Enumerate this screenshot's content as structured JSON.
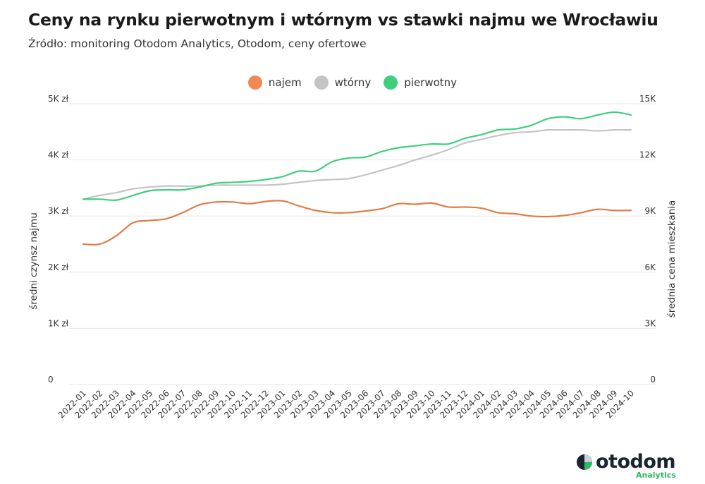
{
  "title": "Ceny na rynku pierwotnym i wtórnym vs stawki najmu we Wrocławiu",
  "subtitle": "Źródło: monitoring Otodom Analytics, Otodom, ceny ofertowe",
  "legend": [
    {
      "label": "najem",
      "color": "#f08a55"
    },
    {
      "label": "wtórny",
      "color": "#c4c4c4"
    },
    {
      "label": "pierwotny",
      "color": "#3ecf7c"
    }
  ],
  "logo": {
    "word": "otodom",
    "sub": "Analytics"
  },
  "chart_data": {
    "type": "line",
    "title": "Ceny na rynku pierwotnym i wtórnym vs stawki najmu we Wrocławiu",
    "ylabel_left": "średni czynsz najmu",
    "ylabel_right": "średnia cena mieszkania",
    "ylim_left": [
      0,
      5000
    ],
    "ylim_right": [
      0,
      15000
    ],
    "yticks_left": [
      "0",
      "1K zł",
      "2K zł",
      "3K zł",
      "4K zł",
      "5K zł"
    ],
    "yticks_right": [
      "0",
      "3K",
      "6K",
      "9K",
      "12K",
      "15K"
    ],
    "grid": true,
    "legend_position": "top-center",
    "categories": [
      "2022-01",
      "2022-02",
      "2022-03",
      "2022-04",
      "2022-05",
      "2022-06",
      "2022-07",
      "2022-08",
      "2022-09",
      "2022-10",
      "2022-11",
      "2022-12",
      "2023-01",
      "2023-02",
      "2023-03",
      "2023-04",
      "2023-05",
      "2023-06",
      "2023-07",
      "2023-08",
      "2023-09",
      "2023-10",
      "2023-11",
      "2023-12",
      "2024-01",
      "2024-02",
      "2024-03",
      "2024-04",
      "2024-05",
      "2024-06",
      "2024-07",
      "2024-08",
      "2024-09",
      "2024-10"
    ],
    "series": [
      {
        "name": "najem",
        "axis": "left",
        "color": "#e07b45",
        "values": [
          2500,
          2500,
          2650,
          2880,
          2920,
          2950,
          3060,
          3200,
          3250,
          3250,
          3220,
          3260,
          3270,
          3180,
          3100,
          3060,
          3060,
          3090,
          3130,
          3220,
          3210,
          3230,
          3160,
          3160,
          3140,
          3060,
          3040,
          3000,
          2990,
          3010,
          3060,
          3120,
          3100,
          3100
        ]
      },
      {
        "name": "wtórny",
        "axis": "right",
        "color": "#c4c4c4",
        "values": [
          9900,
          10100,
          10250,
          10450,
          10550,
          10600,
          10600,
          10600,
          10650,
          10650,
          10650,
          10650,
          10700,
          10800,
          10900,
          10950,
          11000,
          11200,
          11450,
          11700,
          12000,
          12250,
          12550,
          12900,
          13100,
          13300,
          13450,
          13500,
          13600,
          13600,
          13600,
          13550,
          13600,
          13600
        ]
      },
      {
        "name": "pierwotny",
        "axis": "right",
        "color": "#3ecf7c",
        "values": [
          9900,
          9900,
          9850,
          10100,
          10350,
          10400,
          10400,
          10550,
          10750,
          10800,
          10850,
          10950,
          11100,
          11400,
          11400,
          11900,
          12100,
          12150,
          12450,
          12650,
          12750,
          12850,
          12850,
          13150,
          13350,
          13600,
          13650,
          13850,
          14200,
          14300,
          14200,
          14400,
          14550,
          14400
        ]
      }
    ]
  }
}
